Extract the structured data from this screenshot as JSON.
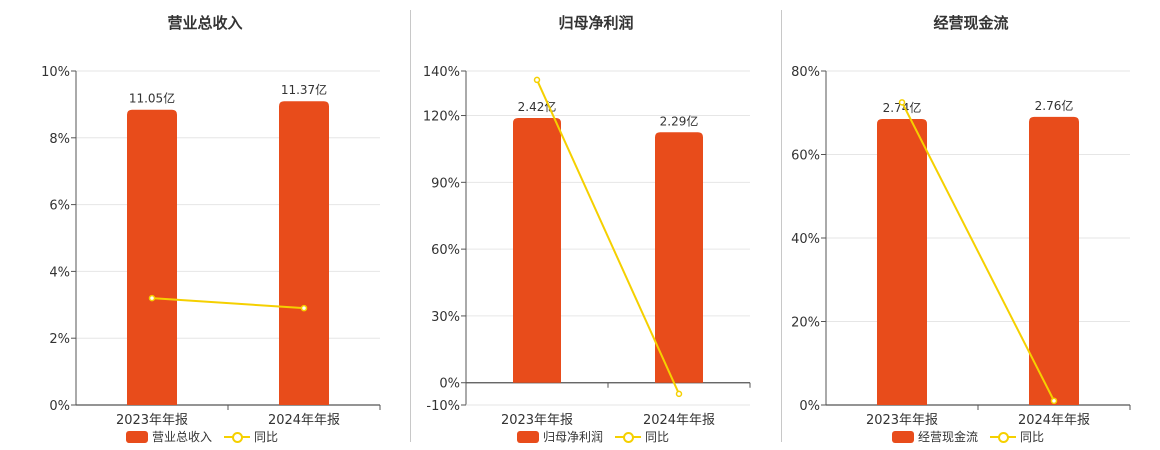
{
  "colors": {
    "bar": "#e84c1b",
    "line": "#f5d000",
    "axis": "#555555",
    "grid": "#e6e6e6"
  },
  "chart_data": [
    {
      "type": "bar",
      "title": "营业总收入",
      "categories": [
        "2023年年报",
        "2024年年报"
      ],
      "bar_series": {
        "name": "营业总收入",
        "values": [
          11.05,
          11.37
        ],
        "labels": [
          "11.05亿",
          "11.37亿"
        ]
      },
      "line_series": {
        "name": "同比",
        "values": [
          3.2,
          2.9
        ]
      },
      "bar_max": 12.5,
      "ylim": [
        0,
        10
      ],
      "yticks": [
        0,
        2,
        4,
        6,
        8,
        10
      ],
      "ytick_labels": [
        "0%",
        "2%",
        "4%",
        "6%",
        "8%",
        "10%"
      ]
    },
    {
      "type": "bar",
      "title": "归母净利润",
      "categories": [
        "2023年年报",
        "2024年年报"
      ],
      "bar_series": {
        "name": "归母净利润",
        "values": [
          2.42,
          2.29
        ],
        "labels": [
          "2.42亿",
          "2.29亿"
        ]
      },
      "line_series": {
        "name": "同比",
        "values": [
          136,
          -5
        ]
      },
      "bar_max": 2.85,
      "bar_zero": 0,
      "ylim": [
        -10,
        140
      ],
      "yticks": [
        -10,
        0,
        30,
        60,
        90,
        120,
        140
      ],
      "ytick_labels": [
        "-10%",
        "0%",
        "30%",
        "60%",
        "90%",
        "120%",
        "140%"
      ]
    },
    {
      "type": "bar",
      "title": "经营现金流",
      "categories": [
        "2023年年报",
        "2024年年报"
      ],
      "bar_series": {
        "name": "经营现金流",
        "values": [
          2.74,
          2.76
        ],
        "labels": [
          "2.74亿",
          "2.76亿"
        ]
      },
      "line_series": {
        "name": "同比",
        "values": [
          72.5,
          1
        ]
      },
      "bar_max": 3.2,
      "ylim": [
        0,
        80
      ],
      "yticks": [
        0,
        20,
        40,
        60,
        80
      ],
      "ytick_labels": [
        "0%",
        "20%",
        "40%",
        "60%",
        "80%"
      ]
    }
  ]
}
